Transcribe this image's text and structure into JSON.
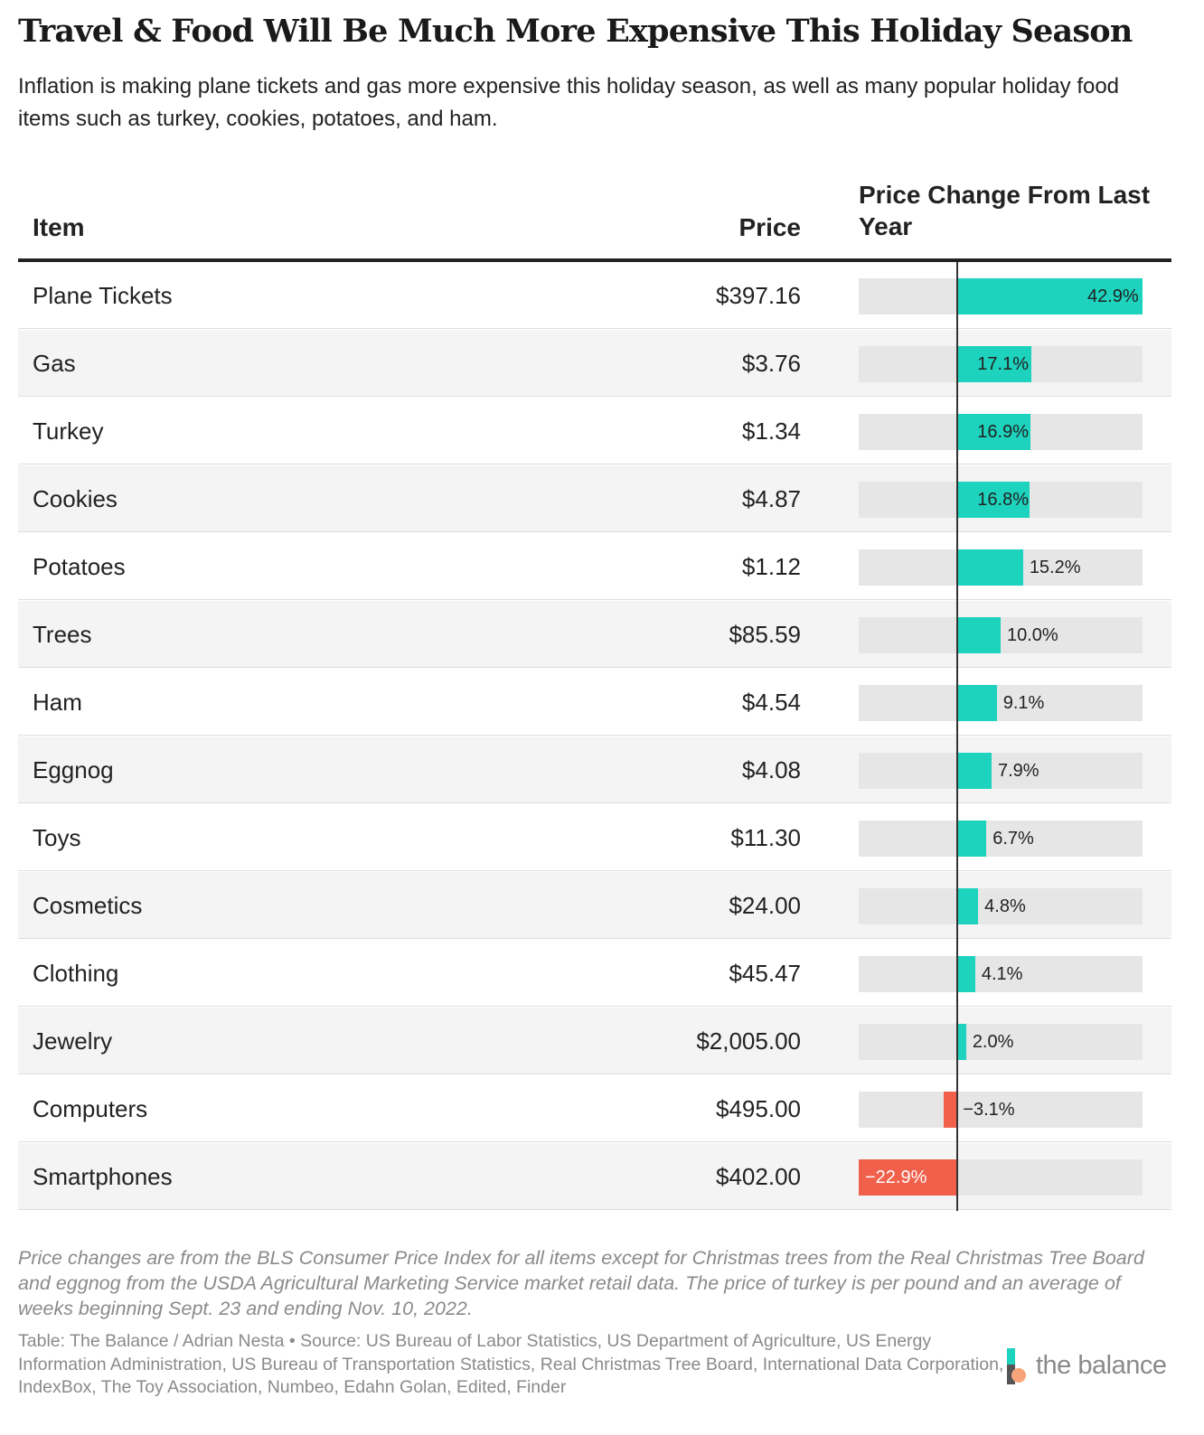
{
  "title": "Travel & Food Will Be Much More Expensive This Holiday Season",
  "subtitle": "Inflation is making plane tickets and gas more expensive this holiday season, as well as many popular holiday food items such as turkey, cookies, potatoes, and ham.",
  "columns": {
    "item": "Item",
    "price": "Price",
    "change": "Price Change From Last Year"
  },
  "chart_data": {
    "type": "table",
    "title": "Travel & Food Will Be Much More Expensive This Holiday Season",
    "columns": [
      "Item",
      "Price",
      "Price Change From Last Year"
    ],
    "xlim": [
      -22.9,
      42.9
    ],
    "rows": [
      {
        "item": "Plane Tickets",
        "price": "$397.16",
        "change": 42.9,
        "label": "42.9%"
      },
      {
        "item": "Gas",
        "price": "$3.76",
        "change": 17.1,
        "label": "17.1%"
      },
      {
        "item": "Turkey",
        "price": "$1.34",
        "change": 16.9,
        "label": "16.9%"
      },
      {
        "item": "Cookies",
        "price": "$4.87",
        "change": 16.8,
        "label": "16.8%"
      },
      {
        "item": "Potatoes",
        "price": "$1.12",
        "change": 15.2,
        "label": "15.2%"
      },
      {
        "item": "Trees",
        "price": "$85.59",
        "change": 10.0,
        "label": "10.0%"
      },
      {
        "item": "Ham",
        "price": "$4.54",
        "change": 9.1,
        "label": "9.1%"
      },
      {
        "item": "Eggnog",
        "price": "$4.08",
        "change": 7.9,
        "label": "7.9%"
      },
      {
        "item": "Toys",
        "price": "$11.30",
        "change": 6.7,
        "label": "6.7%"
      },
      {
        "item": "Cosmetics",
        "price": "$24.00",
        "change": 4.8,
        "label": "4.8%"
      },
      {
        "item": "Clothing",
        "price": "$45.47",
        "change": 4.1,
        "label": "4.1%"
      },
      {
        "item": "Jewelry",
        "price": "$2,005.00",
        "change": 2.0,
        "label": "2.0%"
      },
      {
        "item": "Computers",
        "price": "$495.00",
        "change": -3.1,
        "label": "−3.1%"
      },
      {
        "item": "Smartphones",
        "price": "$402.00",
        "change": -22.9,
        "label": "−22.9%"
      }
    ]
  },
  "footnote": "Price changes are from the BLS Consumer Price Index for all items except for Christmas trees from the Real Christmas Tree Board and eggnog from the USDA Agricultural Marketing Service market retail data. The price of turkey is per pound and an average of weeks beginning Sept. 23 and ending Nov. 10, 2022.",
  "source": "Table: The Balance / Adrian Nesta • Source: US Bureau of Labor Statistics, US Department of Agriculture, US Energy Information Administration, US Bureau of Transportation Statistics, Real Christmas Tree Board, International Data Corporation, IndexBox, The Toy Association, Numbeo, Edahn Golan, Edited, Finder",
  "logo": {
    "text": "the balance",
    "icon": "balance-logo-icon"
  },
  "colors": {
    "positive": "#1dd3bd",
    "negative": "#f0604b",
    "track": "#e6e6e6"
  }
}
